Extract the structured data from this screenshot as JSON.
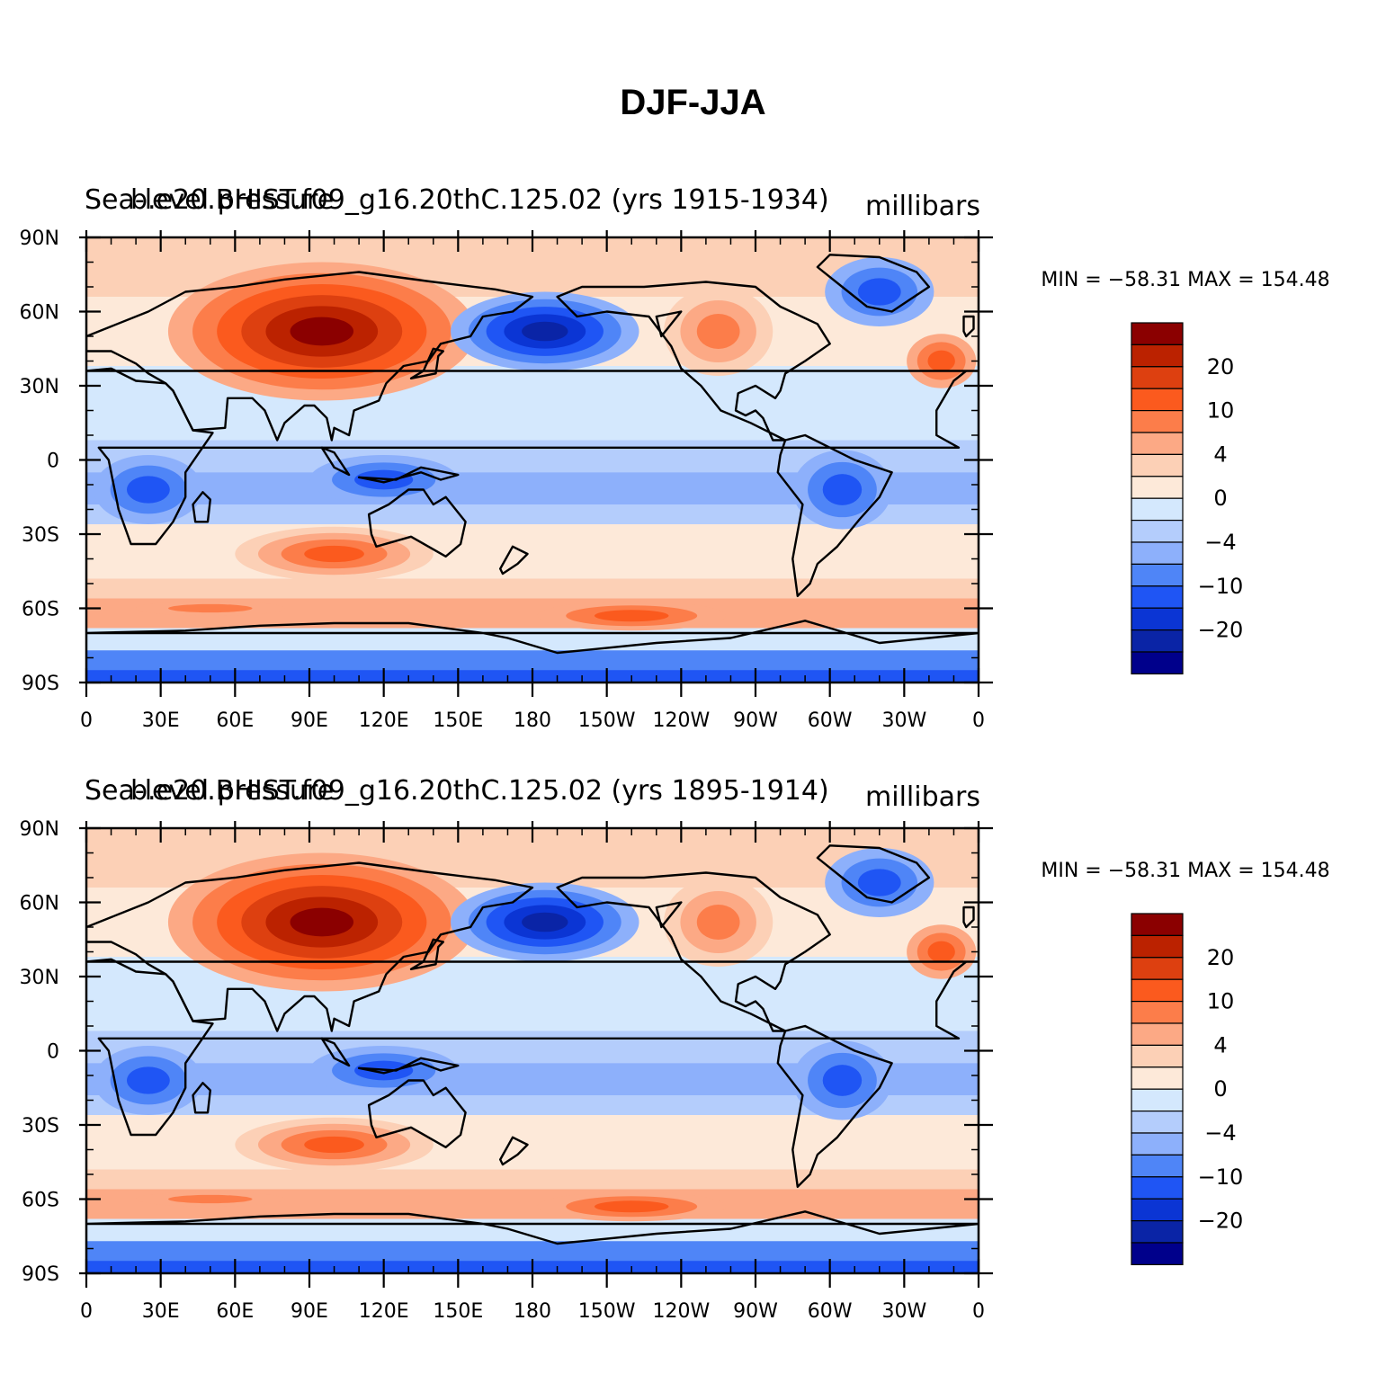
{
  "figure_title": "DJF-JJA",
  "panels": [
    {
      "case_name": "b.e20.BHIST.f09_g16.20thC.125.02 (yrs 1915-1934)",
      "variable": "Sea-level pressure",
      "units": "millibars",
      "stats": "MIN = −58.31  MAX = 154.48"
    },
    {
      "case_name": "b.e20.BHIST.f09_g16.20thC.125.02 (yrs 1895-1914)",
      "variable": "Sea-level pressure",
      "units": "millibars",
      "stats": "MIN = −58.31  MAX = 154.48"
    }
  ],
  "lat_labels": [
    "90N",
    "60N",
    "30N",
    "0",
    "30S",
    "60S",
    "90S"
  ],
  "lon_labels": [
    "0",
    "30E",
    "60E",
    "90E",
    "120E",
    "150E",
    "180",
    "150W",
    "120W",
    "90W",
    "60W",
    "30W",
    "0"
  ],
  "colorbar": {
    "colors": [
      "#8b0000",
      "#bb2200",
      "#dd4010",
      "#fb5a1e",
      "#fc7d4a",
      "#fca985",
      "#fcd0b6",
      "#fde9d9",
      "#d4e8fd",
      "#b4cdfc",
      "#8db0fb",
      "#4f85f7",
      "#1f55f4",
      "#0b35d4",
      "#0a24a6",
      "#00008b"
    ],
    "labels": [
      {
        "text": "20",
        "after_box": 1
      },
      {
        "text": "10",
        "after_box": 3
      },
      {
        "text": "4",
        "after_box": 5
      },
      {
        "text": "0",
        "after_box": 7
      },
      {
        "text": "−4",
        "after_box": 9
      },
      {
        "text": "−10",
        "after_box": 11
      },
      {
        "text": "−20",
        "after_box": 13
      }
    ]
  },
  "field_features": [
    {
      "name": "siberian-high",
      "lon": 95,
      "lat": 52,
      "rx": 62,
      "ry": 28,
      "colors": [
        "#fca985",
        "#fc7d4a",
        "#fb5a1e",
        "#dd4010",
        "#bb2200",
        "#8b0000"
      ]
    },
    {
      "name": "aleutian-low",
      "lon": 185,
      "lat": 52,
      "rx": 38,
      "ry": 16,
      "colors": [
        "#8db0fb",
        "#4f85f7",
        "#1f55f4",
        "#0b35d4",
        "#0a24a6"
      ]
    },
    {
      "name": "icelandic-low",
      "lon": 320,
      "lat": 68,
      "rx": 22,
      "ry": 14,
      "colors": [
        "#8db0fb",
        "#4f85f7",
        "#1f55f4"
      ]
    },
    {
      "name": "north-america-high",
      "lon": 255,
      "lat": 52,
      "rx": 22,
      "ry": 18,
      "colors": [
        "#fcd0b6",
        "#fca985",
        "#fc7d4a"
      ]
    },
    {
      "name": "azores-high",
      "lon": 345,
      "lat": 40,
      "rx": 14,
      "ry": 11,
      "colors": [
        "#fca985",
        "#fc7d4a",
        "#fb5a1e"
      ]
    },
    {
      "name": "africa-low",
      "lon": 25,
      "lat": -12,
      "rx": 22,
      "ry": 14,
      "colors": [
        "#8db0fb",
        "#4f85f7",
        "#1f55f4"
      ]
    },
    {
      "name": "maritime-continent-low",
      "lon": 120,
      "lat": -8,
      "rx": 30,
      "ry": 10,
      "colors": [
        "#8db0fb",
        "#4f85f7",
        "#1f55f4"
      ]
    },
    {
      "name": "south-america-low",
      "lon": 305,
      "lat": -12,
      "rx": 20,
      "ry": 16,
      "colors": [
        "#8db0fb",
        "#4f85f7",
        "#1f55f4"
      ]
    },
    {
      "name": "australia-high",
      "lon": 100,
      "lat": -38,
      "rx": 40,
      "ry": 11,
      "colors": [
        "#fcd0b6",
        "#fca985",
        "#fc7d4a",
        "#fb5a1e"
      ]
    },
    {
      "name": "south-pacific-high",
      "lon": 220,
      "lat": -63,
      "rx": 38,
      "ry": 6,
      "colors": [
        "#fca985",
        "#fc7d4a",
        "#fb5a1e"
      ]
    },
    {
      "name": "south-indian-ridge",
      "lon": 50,
      "lat": -60,
      "rx": 30,
      "ry": 3,
      "colors": [
        "#fca985",
        "#fc7d4a"
      ]
    }
  ]
}
